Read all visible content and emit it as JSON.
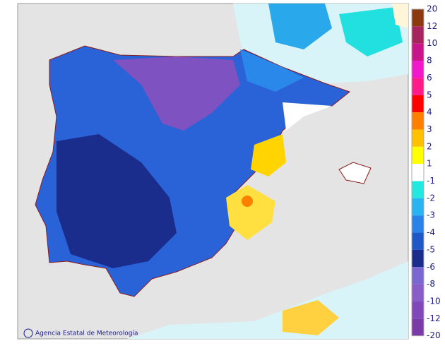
{
  "legend": {
    "items": [
      {
        "label": "20",
        "color": "#8b3a0f"
      },
      {
        "label": "12",
        "color": "#a8245e"
      },
      {
        "label": "10",
        "color": "#c8168a"
      },
      {
        "label": "8",
        "color": "#f018c8"
      },
      {
        "label": "6",
        "color": "#ff1a8c"
      },
      {
        "label": "5",
        "color": "#ff0000"
      },
      {
        "label": "4",
        "color": "#ff8000"
      },
      {
        "label": "3",
        "color": "#ffc000"
      },
      {
        "label": "2",
        "color": "#ffff00"
      },
      {
        "label": "1",
        "color": "#ffffff"
      },
      {
        "label": "-1",
        "color": "#22e8e0"
      },
      {
        "label": "-2",
        "color": "#28b4f0"
      },
      {
        "label": "-3",
        "color": "#2882e8"
      },
      {
        "label": "-4",
        "color": "#2058c8"
      },
      {
        "label": "-5",
        "color": "#1a2c8c"
      },
      {
        "label": "-6",
        "color": "#7a68d0"
      },
      {
        "label": "-8",
        "color": "#8a5cc8"
      },
      {
        "label": "-10",
        "color": "#8048b8"
      },
      {
        "label": "-12",
        "color": "#7a3aa8"
      },
      {
        "label": "-20",
        "color": null
      }
    ]
  },
  "credit": "Agencia Estatal de Meteorología"
}
